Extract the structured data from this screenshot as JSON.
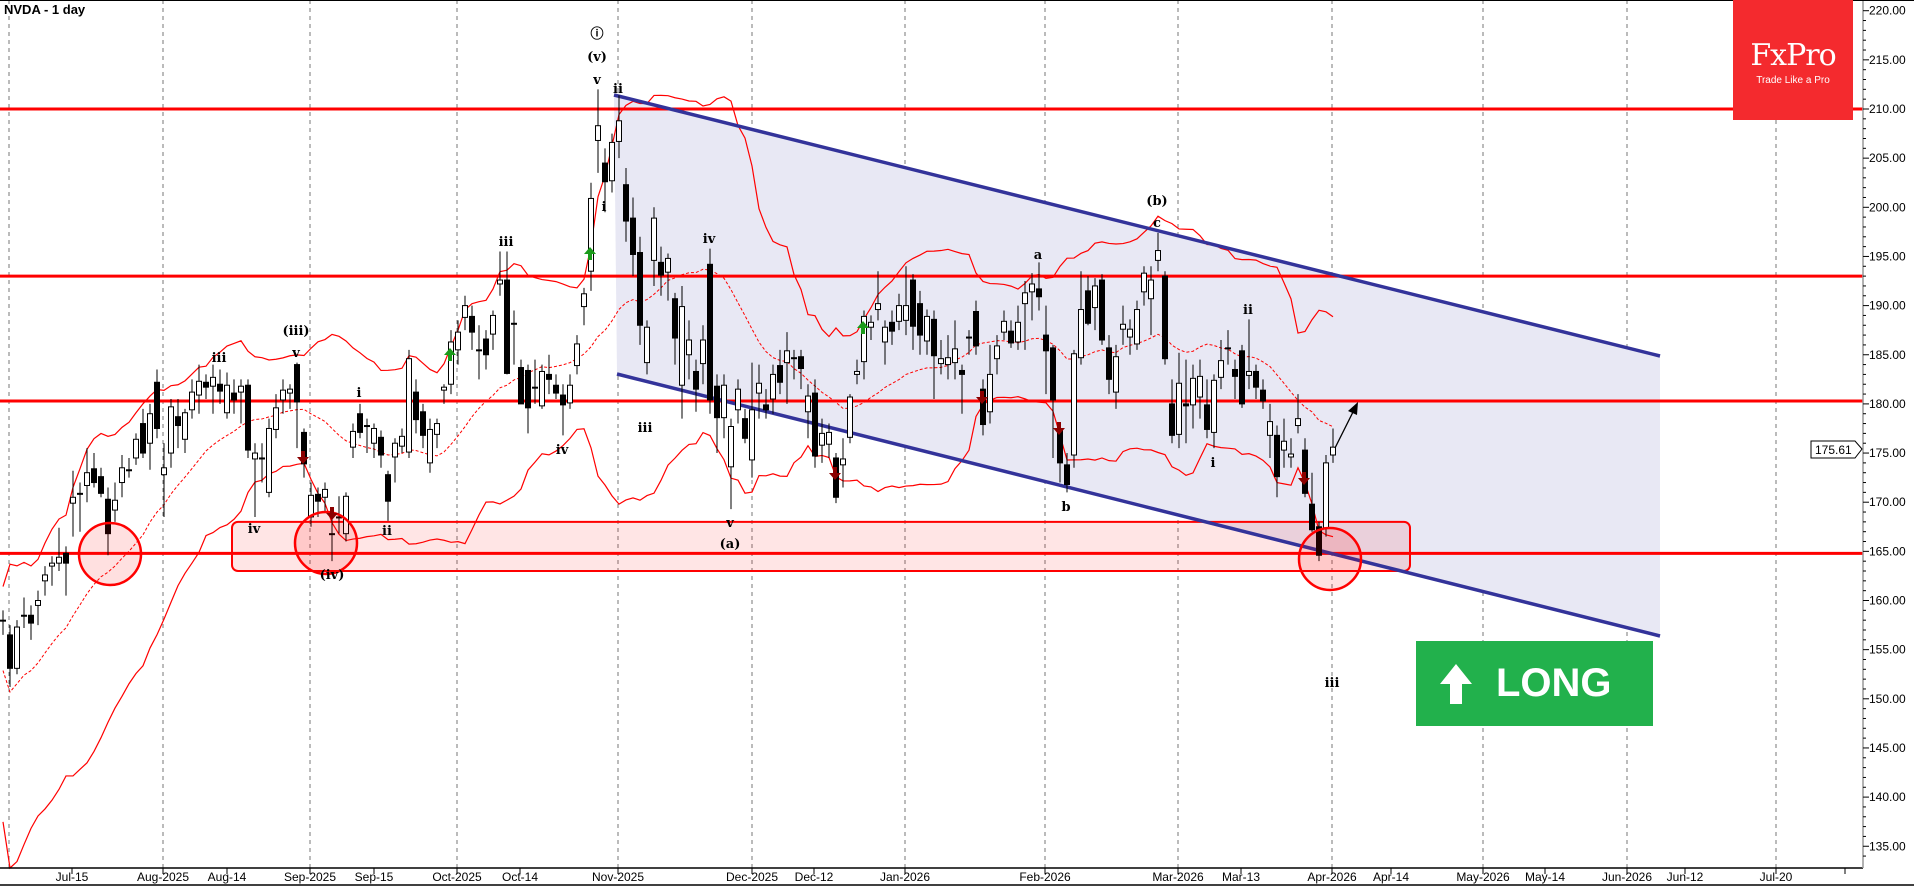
{
  "title": "NVDA - 1 day",
  "logo": {
    "brand": "FxPro",
    "tagline": "Trade Like a Pro",
    "color": "#f42a2e"
  },
  "banner": {
    "label": "LONG",
    "icon": "arrow-up-icon",
    "color": "#22b14c"
  },
  "current_price": "175.61",
  "colors": {
    "levels": "#ff0000",
    "channel": "#33339a",
    "channel_fill": "#e8e8f4",
    "bands": "#ff0000",
    "buy_signal": "#1a9a1a",
    "sell_signal": "#8b0000"
  },
  "wave_labels": [
    "iv",
    "(iii)",
    "v",
    "iii",
    "(iv)",
    "i",
    "ii",
    "iii",
    "iv",
    "ⓘ",
    "(v)",
    "v",
    "i",
    "ii",
    "iii",
    "iv",
    "v",
    "(a)",
    "a",
    "b",
    "(b)",
    "c",
    "i",
    "ii",
    "iii"
  ],
  "chart_data": {
    "type": "candlestick",
    "title": "NVDA - 1 day",
    "y_range": [
      133.4,
      221
    ],
    "y_ticks": [
      "220.00",
      "215.00",
      "210.00",
      "205.00",
      "200.00",
      "195.00",
      "190.00",
      "185.00",
      "180.00",
      "175.00",
      "170.00",
      "165.00",
      "160.00",
      "155.00",
      "150.00",
      "145.00",
      "140.00",
      "135.00"
    ],
    "x_ticks": [
      "Jul-15",
      "Aug-2025",
      "Aug-14",
      "Sep-2025",
      "Sep-15",
      "Oct-2025",
      "Oct-14",
      "Nov-2025",
      "Dec-2025",
      "Dec-12",
      "Jan-2026",
      "Feb-2026",
      "Mar-2026",
      "Mar-13",
      "Apr-2026",
      "Apr-14",
      "May-2026",
      "May-14",
      "Jun-2026",
      "Jun-12",
      "Jul-20"
    ],
    "grid": "vertical dashed at month starts",
    "indicators": [
      "Bollinger Bands (20, 2)"
    ],
    "horizontal_levels": [
      210.0,
      193.0,
      180.3,
      164.8
    ],
    "support_zone": [
      163.0,
      168.0
    ],
    "channel": {
      "upper": [
        211.5,
        185.0
      ],
      "lower": [
        183.0,
        156.5
      ]
    },
    "candles_ohlc": [
      [
        158,
        159,
        156.5,
        158
      ],
      [
        156.5,
        157.5,
        151.2,
        153.1
      ],
      [
        153.1,
        158,
        152.5,
        157.3
      ],
      [
        158.5,
        160.3,
        157.2,
        158.5
      ],
      [
        158.5,
        159.5,
        156,
        157.7
      ],
      [
        159.5,
        161,
        157.5,
        160
      ],
      [
        162,
        163.5,
        160.5,
        162.6
      ],
      [
        163.5,
        164.5,
        161.5,
        163.8
      ],
      [
        163.8,
        167.4,
        163,
        164.4
      ],
      [
        164.8,
        165.5,
        160.5,
        163.8
      ],
      [
        169.9,
        173.2,
        166.5,
        170.5
      ],
      [
        170.9,
        172,
        167,
        170.9
      ],
      [
        171.7,
        175.5,
        170,
        173
      ],
      [
        173.4,
        175,
        171.5,
        172
      ],
      [
        172.6,
        173.5,
        170.5,
        170.9
      ],
      [
        170.3,
        171.5,
        164.6,
        166.8
      ],
      [
        169.2,
        172,
        168,
        170.2
      ],
      [
        172,
        174.8,
        170.5,
        173.5
      ],
      [
        173.3,
        174.5,
        172.5,
        173.3
      ],
      [
        174.5,
        177,
        173.8,
        176.4
      ],
      [
        178,
        179.5,
        174.5,
        175
      ],
      [
        176,
        180,
        173.3,
        179
      ],
      [
        182.2,
        183.5,
        176.5,
        177.5
      ],
      [
        172.8,
        176,
        168.5,
        173.5
      ],
      [
        175,
        180.5,
        173.5,
        179.7
      ],
      [
        178.7,
        180.5,
        175.5,
        177.8
      ],
      [
        176.4,
        179.5,
        175,
        179.1
      ],
      [
        179.4,
        182.5,
        178.5,
        181.2
      ],
      [
        180.9,
        184,
        179,
        182.3
      ],
      [
        182.2,
        183,
        180.5,
        181.7
      ],
      [
        181.8,
        184,
        179,
        182.7
      ],
      [
        182,
        183.5,
        180,
        181.3
      ],
      [
        179.1,
        183.2,
        178.5,
        181.9
      ],
      [
        181.1,
        182.5,
        179,
        180.4
      ],
      [
        181.2,
        182.5,
        178,
        181.8
      ],
      [
        181.9,
        182.5,
        174.5,
        175.3
      ],
      [
        174.4,
        176,
        168.5,
        175
      ],
      [
        174.5,
        176,
        172,
        174.5
      ],
      [
        171,
        178.5,
        170.5,
        177.5
      ],
      [
        177.4,
        181,
        176.5,
        179.6
      ],
      [
        180.4,
        182.5,
        179,
        181.4
      ],
      [
        181.1,
        182,
        179.5,
        181.5
      ],
      [
        184,
        184.2,
        175.5,
        180.2
      ],
      [
        177.1,
        177.5,
        172.5,
        173.9
      ],
      [
        168.5,
        172,
        167.5,
        170.7
      ],
      [
        170.8,
        171.5,
        168.5,
        170.1
      ],
      [
        170.5,
        172,
        169,
        171.3
      ],
      [
        166.8,
        169.4,
        164,
        166.8
      ],
      [
        168.5,
        170.6,
        166.8,
        168.5
      ],
      [
        166.8,
        171,
        166,
        170.6
      ],
      [
        175.6,
        178,
        174.5,
        177.2
      ],
      [
        179,
        180,
        176.5,
        177.1
      ],
      [
        177.8,
        178.5,
        175,
        177.8
      ],
      [
        176,
        178,
        174.5,
        177.5
      ],
      [
        176.6,
        177.3,
        173.5,
        174.8
      ],
      [
        172.8,
        173.2,
        168.1,
        170.1
      ],
      [
        174.6,
        176.5,
        172,
        176
      ],
      [
        175.7,
        177.5,
        175,
        176.7
      ],
      [
        175.1,
        185.5,
        174.5,
        184.6
      ],
      [
        181.2,
        182.5,
        177,
        178.4
      ],
      [
        179.2,
        180,
        175.5,
        176.8
      ],
      [
        174,
        178.5,
        173,
        177.4
      ],
      [
        176.9,
        178.5,
        175.5,
        178
      ],
      [
        181.4,
        182,
        180,
        181.7
      ],
      [
        182,
        187.5,
        181,
        186.3
      ],
      [
        185.5,
        188.5,
        184,
        187.3
      ],
      [
        188.8,
        191,
        187.5,
        190
      ],
      [
        188.9,
        190,
        185.5,
        187.3
      ],
      [
        185.5,
        188,
        182.5,
        185.5
      ],
      [
        186.6,
        187.5,
        183.5,
        185
      ],
      [
        187.1,
        189.5,
        185.5,
        189
      ],
      [
        192.2,
        195.5,
        191,
        192.6
      ],
      [
        192.6,
        195.5,
        183,
        183.1
      ],
      [
        188.2,
        189.5,
        184,
        188.2
      ],
      [
        183.7,
        184.5,
        180,
        180
      ],
      [
        183.4,
        184,
        177,
        179.6
      ],
      [
        181.7,
        184.5,
        180,
        181.7
      ],
      [
        179.8,
        184,
        179.5,
        183.3
      ],
      [
        183,
        185,
        181,
        182.5
      ],
      [
        181.9,
        183,
        180.5,
        181.1
      ],
      [
        180.9,
        182,
        176.8,
        179.9
      ],
      [
        180.1,
        183,
        179.5,
        181.9
      ],
      [
        183.9,
        187,
        183,
        186.1
      ],
      [
        189.9,
        191.8,
        188,
        191.2
      ],
      [
        193.5,
        202.5,
        191.5,
        200.9
      ],
      [
        206.8,
        212,
        203.5,
        208.3
      ],
      [
        204.5,
        206,
        199.5,
        202.6
      ],
      [
        202.7,
        207.5,
        201.5,
        206.6
      ],
      [
        206.7,
        211.4,
        205,
        208.8
      ],
      [
        202.3,
        204,
        196.5,
        198.6
      ],
      [
        198.9,
        201,
        193,
        195.2
      ],
      [
        195.4,
        197,
        186,
        188
      ],
      [
        184.2,
        188.5,
        183,
        187.8
      ],
      [
        194.6,
        200,
        192,
        198.9
      ],
      [
        194.4,
        196,
        191,
        193.1
      ],
      [
        193.4,
        195.3,
        190.5,
        194.8
      ],
      [
        190.7,
        191.3,
        184,
        186.7
      ],
      [
        181.9,
        192,
        178.5,
        189.9
      ],
      [
        185,
        188.5,
        182.5,
        186.5
      ],
      [
        183.3,
        184.5,
        179.2,
        181.5
      ],
      [
        184.1,
        188,
        182,
        186.5
      ],
      [
        194.2,
        195.8,
        179,
        180.4
      ],
      [
        181.8,
        183,
        175,
        178.6
      ],
      [
        178.6,
        183,
        176.5,
        181.9
      ],
      [
        173.6,
        178.5,
        169.3,
        177.7
      ],
      [
        179.4,
        182.5,
        178,
        181.5
      ],
      [
        178.5,
        179.5,
        176,
        176.5
      ],
      [
        174.3,
        184.2,
        172.5,
        179.4
      ],
      [
        181.1,
        184,
        178.5,
        182.1
      ],
      [
        179.9,
        181.5,
        178.5,
        179.4
      ],
      [
        180.5,
        184,
        179,
        183
      ],
      [
        183.9,
        185.5,
        181,
        182.2
      ],
      [
        184.2,
        187.3,
        180,
        185.4
      ],
      [
        184.7,
        185.5,
        182.5,
        184.7
      ],
      [
        184.8,
        185.5,
        181.5,
        183.6
      ],
      [
        179.2,
        182,
        176.5,
        180.8
      ],
      [
        181.1,
        182.5,
        173.5,
        174.7
      ],
      [
        175.8,
        178.5,
        174,
        177
      ],
      [
        175.9,
        178,
        174.5,
        177.1
      ],
      [
        174.5,
        175,
        169.9,
        170.5
      ],
      [
        173.8,
        176.5,
        171.5,
        174.4
      ],
      [
        176.6,
        181,
        176,
        180.7
      ],
      [
        183,
        184.5,
        182,
        183.3
      ],
      [
        184.3,
        189.5,
        182.5,
        188.9
      ],
      [
        187.8,
        189,
        186.5,
        188.3
      ],
      [
        189.6,
        193.5,
        188.5,
        190.2
      ],
      [
        186.3,
        188.5,
        184,
        187.8
      ],
      [
        188.3,
        189.5,
        186,
        187.4
      ],
      [
        188.4,
        191.2,
        187.5,
        190
      ],
      [
        188.5,
        194,
        187,
        190
      ],
      [
        192.6,
        193.2,
        185.5,
        187.9
      ],
      [
        190.2,
        191.5,
        185,
        187
      ],
      [
        186.4,
        189.6,
        185,
        188.9
      ],
      [
        188.6,
        189.5,
        180.5,
        184.9
      ],
      [
        184.1,
        186.5,
        183,
        184.6
      ],
      [
        184,
        187,
        182.5,
        184.7
      ],
      [
        184.2,
        188.5,
        182.5,
        185.6
      ],
      [
        183.4,
        184,
        179,
        183
      ],
      [
        186.8,
        187.5,
        185,
        186.8
      ],
      [
        189.4,
        190.5,
        185,
        185.9
      ],
      [
        181.5,
        182.5,
        176.8,
        177.9
      ],
      [
        179.2,
        186,
        178,
        183
      ],
      [
        184.6,
        187,
        183,
        185.9
      ],
      [
        187.3,
        189.5,
        186.5,
        188.4
      ],
      [
        187.4,
        188.5,
        185.7,
        186.2
      ],
      [
        186.3,
        190,
        185.5,
        188.3
      ],
      [
        190.2,
        192.5,
        185.5,
        191.3
      ],
      [
        191.4,
        193.3,
        188.5,
        192.2
      ],
      [
        191.7,
        194.4,
        189.5,
        190.9
      ],
      [
        187,
        190,
        181,
        185.4
      ],
      [
        185.7,
        186,
        174.5,
        180.4
      ],
      [
        177.3,
        178,
        172,
        174
      ],
      [
        173.8,
        175,
        171,
        171.8
      ],
      [
        174.8,
        185.5,
        173.5,
        185.1
      ],
      [
        184.7,
        193.5,
        184,
        189.6
      ],
      [
        191.5,
        193,
        188,
        188.2
      ],
      [
        189.8,
        192.8,
        187.5,
        192
      ],
      [
        192.6,
        193.2,
        186,
        186.5
      ],
      [
        185.7,
        187,
        181,
        182.5
      ],
      [
        181.2,
        186,
        179.5,
        184.8
      ],
      [
        187.6,
        190,
        186,
        188.1
      ],
      [
        186.8,
        188.6,
        185,
        187.6
      ],
      [
        186.1,
        190.5,
        185.5,
        189.6
      ],
      [
        191.4,
        194,
        190,
        193.3
      ],
      [
        190.7,
        194,
        187,
        192.6
      ],
      [
        194.6,
        197.4,
        193.5,
        195.6
      ],
      [
        193,
        193.5,
        184,
        184.6
      ],
      [
        180,
        182.5,
        176,
        176.8
      ],
      [
        176.9,
        185.2,
        175.5,
        182.1
      ],
      [
        180,
        184.5,
        176,
        179.8
      ],
      [
        179.9,
        184,
        177.5,
        182.6
      ],
      [
        180.7,
        184.5,
        178.5,
        182.8
      ],
      [
        179.9,
        182.5,
        176.5,
        177.4
      ],
      [
        177.1,
        183,
        175.5,
        182.4
      ],
      [
        182.7,
        186.5,
        181.5,
        184.4
      ],
      [
        185.7,
        187.5,
        184,
        185.7
      ],
      [
        183.5,
        184.5,
        180.5,
        182.8
      ],
      [
        185.4,
        186,
        179.6,
        180
      ],
      [
        182.9,
        188.6,
        181.5,
        183.3
      ],
      [
        183.3,
        184,
        180.5,
        181.7
      ],
      [
        181.4,
        182.5,
        179.5,
        180.3
      ],
      [
        176.8,
        180,
        174.5,
        178.2
      ],
      [
        176.8,
        177.8,
        170.5,
        172.6
      ],
      [
        175.3,
        178.5,
        173.5,
        176.2
      ],
      [
        174.6,
        176.5,
        173.5,
        174.9
      ],
      [
        177.8,
        181,
        177,
        178.5
      ],
      [
        175.3,
        176.5,
        170.5,
        170.9
      ],
      [
        169.8,
        173,
        167,
        167.2
      ],
      [
        167.5,
        168,
        164,
        164.6
      ],
      [
        167.4,
        174.8,
        166.5,
        174
      ],
      [
        174.8,
        177.5,
        174,
        175.6
      ]
    ]
  }
}
